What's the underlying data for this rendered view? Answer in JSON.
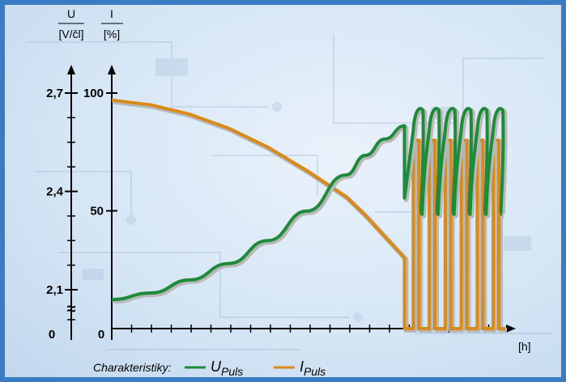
{
  "chart_data": {
    "type": "line",
    "axes": {
      "voltage_axis": {
        "symbol": "U",
        "unit": "[V/čl]",
        "ticks": [
          {
            "value": 2.7,
            "label": "2,7"
          },
          {
            "value": 2.4,
            "label": "2,4"
          },
          {
            "value": 2.1,
            "label": "2,1"
          }
        ],
        "origin_label": "0",
        "break_symbol": "≈"
      },
      "current_axis": {
        "symbol": "I",
        "unit": "[%]",
        "ticks": [
          {
            "value": 100,
            "label": "100"
          },
          {
            "value": 50,
            "label": "50"
          }
        ],
        "origin_label": "0",
        "ylim": [
          0,
          100
        ]
      },
      "time_axis": {
        "unit": "[h]",
        "grid": false
      }
    },
    "legend": {
      "label": "Charakteristiky:",
      "position": "bottom-left"
    },
    "series": [
      {
        "name": "U_Puls",
        "name_main": "U",
        "name_sub": "Puls",
        "color": "#1f8a3a",
        "axis": "voltage",
        "description": "rises from about 2.07 V/cell to about 2.6 V/cell, then pulses between about 2.33 and about 2.66 V/cell",
        "x": [
          0,
          0.1,
          0.2,
          0.3,
          0.4,
          0.5,
          0.6,
          0.65,
          0.7,
          0.75
        ],
        "values": [
          2.07,
          2.09,
          2.13,
          2.18,
          2.25,
          2.34,
          2.45,
          2.51,
          2.56,
          2.6
        ]
      },
      {
        "name": "I_Puls",
        "name_main": "I",
        "name_sub": "Puls",
        "color": "#d88a1a",
        "axis": "current",
        "description": "falls from about 97% to about 28%, then switches between 0% and about 80%",
        "x": [
          0,
          0.1,
          0.2,
          0.3,
          0.4,
          0.5,
          0.6,
          0.65,
          0.7,
          0.75
        ],
        "values": [
          97,
          95,
          91,
          85,
          77,
          67,
          56,
          48,
          39,
          30
        ]
      }
    ],
    "pulse_phase": {
      "voltage_high": 2.66,
      "voltage_low": 2.33,
      "current_high": 80,
      "current_low": 0,
      "pulse_count": 6
    }
  },
  "style": {
    "voltage_color": "#1f8a3a",
    "current_color": "#d88a1a",
    "axis_color": "#000000",
    "frame_color": "#3a7cc4"
  }
}
